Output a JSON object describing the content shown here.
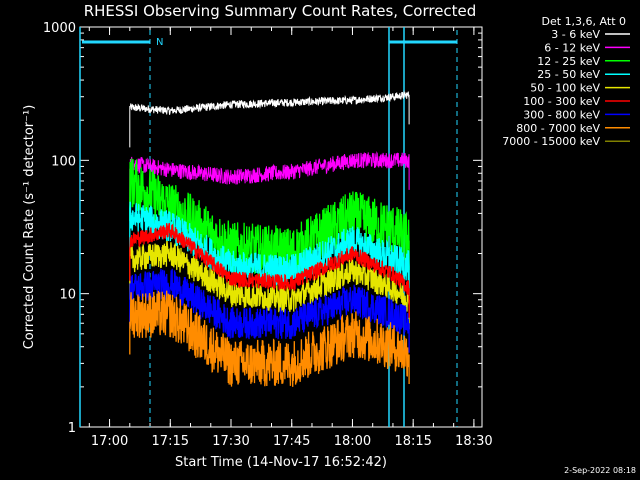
{
  "chart_data": {
    "type": "line",
    "title": "RHESSI Observing Summary Count Rates, Corrected",
    "xlabel": "Start Time (14-Nov-17 16:52:42)",
    "ylabel": "Corrected Count Rate (s⁻¹ detector⁻¹)",
    "y_scale": "log",
    "ylim": [
      1,
      1000
    ],
    "x_range_minutes": [
      "16:52:42",
      "18:32:00"
    ],
    "x_ticks": [
      {
        "label": "17:00",
        "minutes": 7.3
      },
      {
        "label": "17:15",
        "minutes": 22.3
      },
      {
        "label": "17:30",
        "minutes": 37.3
      },
      {
        "label": "17:45",
        "minutes": 52.3
      },
      {
        "label": "18:00",
        "minutes": 67.3
      },
      {
        "label": "18:15",
        "minutes": 82.3
      },
      {
        "label": "18:30",
        "minutes": 97.3
      }
    ],
    "y_ticks": [
      {
        "label": "1",
        "value": 1
      },
      {
        "label": "10",
        "value": 10
      },
      {
        "label": "100",
        "value": 100
      },
      {
        "label": "1000",
        "value": 1000
      }
    ],
    "legend_title": "Det 1,3,6, Att 0",
    "legend_placement": "right",
    "data_interval": [
      "17:05",
      "18:14"
    ],
    "series": [
      {
        "name": "3 - 6 keV",
        "color": "#ffffff",
        "time": [
          "17:05",
          "17:15",
          "17:30",
          "17:45",
          "18:00",
          "18:10",
          "18:14"
        ],
        "values": [
          250,
          235,
          262,
          272,
          282,
          300,
          310
        ]
      },
      {
        "name": "6 - 12 keV",
        "color": "#ff00ff",
        "time": [
          "17:05",
          "17:15",
          "17:30",
          "17:45",
          "18:00",
          "18:10",
          "18:14"
        ],
        "values": [
          95,
          85,
          75,
          82,
          100,
          100,
          100
        ]
      },
      {
        "name": "12 - 25 keV",
        "color": "#00ff00",
        "time": [
          "17:05",
          "17:15",
          "17:30",
          "17:45",
          "18:00",
          "18:10",
          "18:14"
        ],
        "values": [
          70,
          45,
          22,
          20,
          38,
          30,
          25
        ]
      },
      {
        "name": "25 - 50 keV",
        "color": "#00ffff",
        "time": [
          "17:05",
          "17:15",
          "17:30",
          "17:45",
          "18:00",
          "18:10",
          "18:14"
        ],
        "values": [
          38,
          32,
          16,
          15,
          25,
          18,
          16
        ]
      },
      {
        "name": "50 - 100 keV",
        "color": "#e6e600",
        "time": [
          "17:05",
          "17:15",
          "17:30",
          "17:45",
          "18:00",
          "18:10",
          "18:14"
        ],
        "values": [
          18,
          20,
          10,
          9,
          15,
          11,
          9
        ]
      },
      {
        "name": "100 - 300 keV",
        "color": "#ff0000",
        "time": [
          "17:05",
          "17:15",
          "17:30",
          "17:45",
          "18:00",
          "18:10",
          "18:14"
        ],
        "values": [
          25,
          30,
          13,
          12,
          20,
          14,
          11
        ]
      },
      {
        "name": "300 - 800 keV",
        "color": "#0000ff",
        "time": [
          "17:05",
          "17:15",
          "17:30",
          "17:45",
          "18:00",
          "18:10",
          "18:14"
        ],
        "values": [
          11,
          12,
          6,
          6,
          9,
          7,
          6
        ]
      },
      {
        "name": "800 - 7000 keV",
        "color": "#ff8c00",
        "time": [
          "17:05",
          "17:15",
          "17:30",
          "17:45",
          "18:00",
          "18:10",
          "18:14"
        ],
        "values": [
          7,
          7,
          3,
          3,
          5,
          4,
          3.5
        ]
      },
      {
        "name": "7000 - 15000 keV",
        "color": "#808000",
        "time": [],
        "values": []
      }
    ],
    "annotations": [
      {
        "text": "N"
      }
    ],
    "footer_date": "2-Sep-2022 08:18"
  }
}
